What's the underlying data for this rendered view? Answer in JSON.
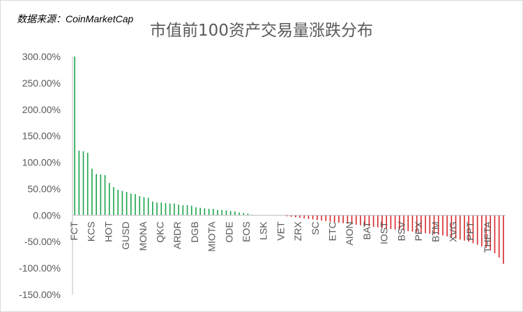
{
  "source_note": "数据来源：CoinMarketCap",
  "chart_data": {
    "type": "bar",
    "title": "市值前100资产交易量涨跌分布",
    "xlabel": "",
    "ylabel": "",
    "ylim": [
      -1.5,
      3.0
    ],
    "yticks": [
      3.0,
      2.5,
      2.0,
      1.5,
      1.0,
      0.5,
      0.0,
      -0.5,
      -1.0,
      -1.5
    ],
    "ytick_labels": [
      "300.00%",
      "250.00%",
      "200.00%",
      "150.00%",
      "100.00%",
      "50.00%",
      "0.00%",
      "-50.00%",
      "-100.00%",
      "-150.00%"
    ],
    "grid": false,
    "legend": "none",
    "positive_color": "#1aa34a",
    "negative_color": "#d8262a",
    "axis_color": "#bfbfbf",
    "category_labels": [
      "FCT",
      "KCS",
      "HOT",
      "GUSD",
      "MONA",
      "QKC",
      "ARDR",
      "DGB",
      "MIOTA",
      "ODE",
      "EOS",
      "LSK",
      "VET",
      "ZRX",
      "SC",
      "ETC",
      "AION",
      "BAT",
      "IOST",
      "BSV",
      "PPX",
      "BTM",
      "XVG",
      "PPT",
      "THETA"
    ],
    "values": [
      3.0,
      1.22,
      1.21,
      1.18,
      0.88,
      0.78,
      0.77,
      0.76,
      0.61,
      0.53,
      0.48,
      0.46,
      0.44,
      0.41,
      0.4,
      0.36,
      0.34,
      0.33,
      0.26,
      0.24,
      0.24,
      0.23,
      0.22,
      0.22,
      0.2,
      0.19,
      0.19,
      0.18,
      0.15,
      0.14,
      0.13,
      0.12,
      0.12,
      0.1,
      0.1,
      0.09,
      0.08,
      0.07,
      0.05,
      0.04,
      0.03,
      0.01,
      0.0,
      0.0,
      0.0,
      0.0,
      0.0,
      0.0,
      0.0,
      -0.02,
      -0.03,
      -0.04,
      -0.05,
      -0.06,
      -0.07,
      -0.08,
      -0.09,
      -0.1,
      -0.11,
      -0.12,
      -0.13,
      -0.14,
      -0.15,
      -0.16,
      -0.17,
      -0.18,
      -0.19,
      -0.2,
      -0.21,
      -0.22,
      -0.23,
      -0.24,
      -0.25,
      -0.26,
      -0.27,
      -0.28,
      -0.29,
      -0.3,
      -0.31,
      -0.32,
      -0.33,
      -0.34,
      -0.35,
      -0.36,
      -0.37,
      -0.38,
      -0.4,
      -0.42,
      -0.44,
      -0.46,
      -0.48,
      -0.5,
      -0.53,
      -0.56,
      -0.59,
      -0.62,
      -0.66,
      -0.72,
      -0.8,
      -0.92
    ]
  }
}
